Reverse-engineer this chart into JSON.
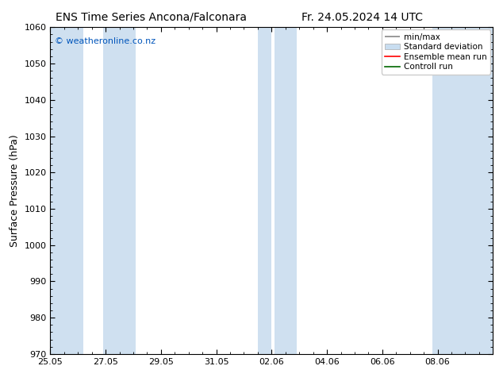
{
  "title_left": "ENS Time Series Ancona/Falconara",
  "title_right": "Fr. 24.05.2024 14 UTC",
  "ylabel": "Surface Pressure (hPa)",
  "ylim": [
    970,
    1060
  ],
  "yticks": [
    970,
    980,
    990,
    1000,
    1010,
    1020,
    1030,
    1040,
    1050,
    1060
  ],
  "xlim_start": 0.0,
  "xlim_end": 16.0,
  "xtick_labels": [
    "25.05",
    "27.05",
    "29.05",
    "31.05",
    "02.06",
    "04.06",
    "06.06",
    "08.06"
  ],
  "xtick_positions": [
    0,
    2,
    4,
    6,
    8,
    10,
    12,
    14
  ],
  "shaded_bands": [
    {
      "xmin": -0.1,
      "xmax": 1.2
    },
    {
      "xmin": 1.9,
      "xmax": 3.1
    },
    {
      "xmin": 7.5,
      "xmax": 8.0
    },
    {
      "xmin": 8.1,
      "xmax": 8.9
    },
    {
      "xmin": 13.8,
      "xmax": 16.1
    }
  ],
  "shade_color": "#cfe0f0",
  "shade_alpha": 1.0,
  "watermark": "© weatheronline.co.nz",
  "watermark_color": "#0055bb",
  "background_color": "#ffffff",
  "plot_bg_color": "#ffffff",
  "title_fontsize": 10,
  "axis_label_fontsize": 9,
  "tick_fontsize": 8,
  "legend_fontsize": 7.5
}
